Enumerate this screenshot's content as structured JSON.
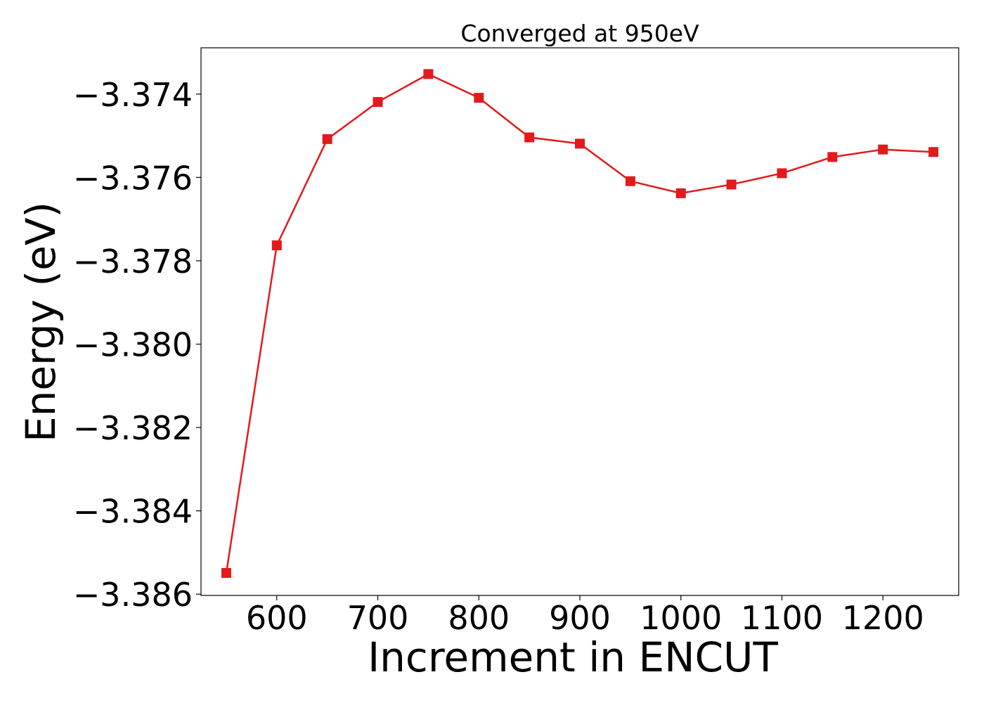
{
  "chart_data": {
    "type": "line",
    "title": "Converged at 950eV",
    "xlabel": "Increment in ENCUT",
    "ylabel": "Energy (eV)",
    "xlim": [
      525,
      1275
    ],
    "ylim": [
      -3.38603,
      -3.37289
    ],
    "x_ticks": [
      600,
      700,
      800,
      900,
      1000,
      1100,
      1200
    ],
    "x_tick_labels": [
      "600",
      "700",
      "800",
      "900",
      "1000",
      "1100",
      "1200"
    ],
    "y_ticks": [
      -3.374,
      -3.376,
      -3.378,
      -3.38,
      -3.382,
      -3.384,
      -3.386
    ],
    "y_tick_labels": [
      "−3.374",
      "−3.376",
      "−3.378",
      "−3.380",
      "−3.382",
      "−3.384",
      "−3.386"
    ],
    "grid": false,
    "marker": "square",
    "color": "#e31a1c",
    "series": [
      {
        "x": [
          550,
          600,
          650,
          700,
          750,
          800,
          850,
          900,
          950,
          1000,
          1050,
          1100,
          1150,
          1200,
          1250
        ],
        "values": [
          -3.38549,
          -3.37763,
          -3.37508,
          -3.37419,
          -3.37352,
          -3.37409,
          -3.37504,
          -3.37519,
          -3.37609,
          -3.37638,
          -3.37617,
          -3.3759,
          -3.37551,
          -3.37533,
          -3.37539
        ]
      }
    ]
  }
}
